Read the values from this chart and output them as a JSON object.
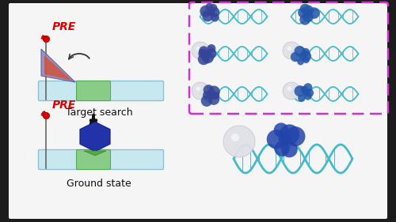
{
  "bg_outer": "#1c1c1c",
  "bg_panel": "#f5f5f5",
  "dna_bar_color": "#c8e8f0",
  "dna_bar_edge": "#90c0d0",
  "target_color": "#88cc88",
  "target_edge": "#55aa55",
  "protein_search_face": "#8888bb",
  "protein_search_edge": "#555599",
  "protein_ground_face": "#2233aa",
  "protein_ground_edge": "#112288",
  "pre_color": "#dd0000",
  "pre_text": "PRE",
  "target_search_text": "Target search",
  "ground_state_text": "Ground state",
  "arrow_col": "#111111",
  "dashed_col": "#cc33cc",
  "dna_helix1": "#44bbcc",
  "dna_helix2": "#3399bb",
  "protein_blob1": "#334499",
  "protein_blob2": "#2255aa",
  "sphere_col": "#e0e0e8",
  "sphere_edge": "#c0c0cc"
}
